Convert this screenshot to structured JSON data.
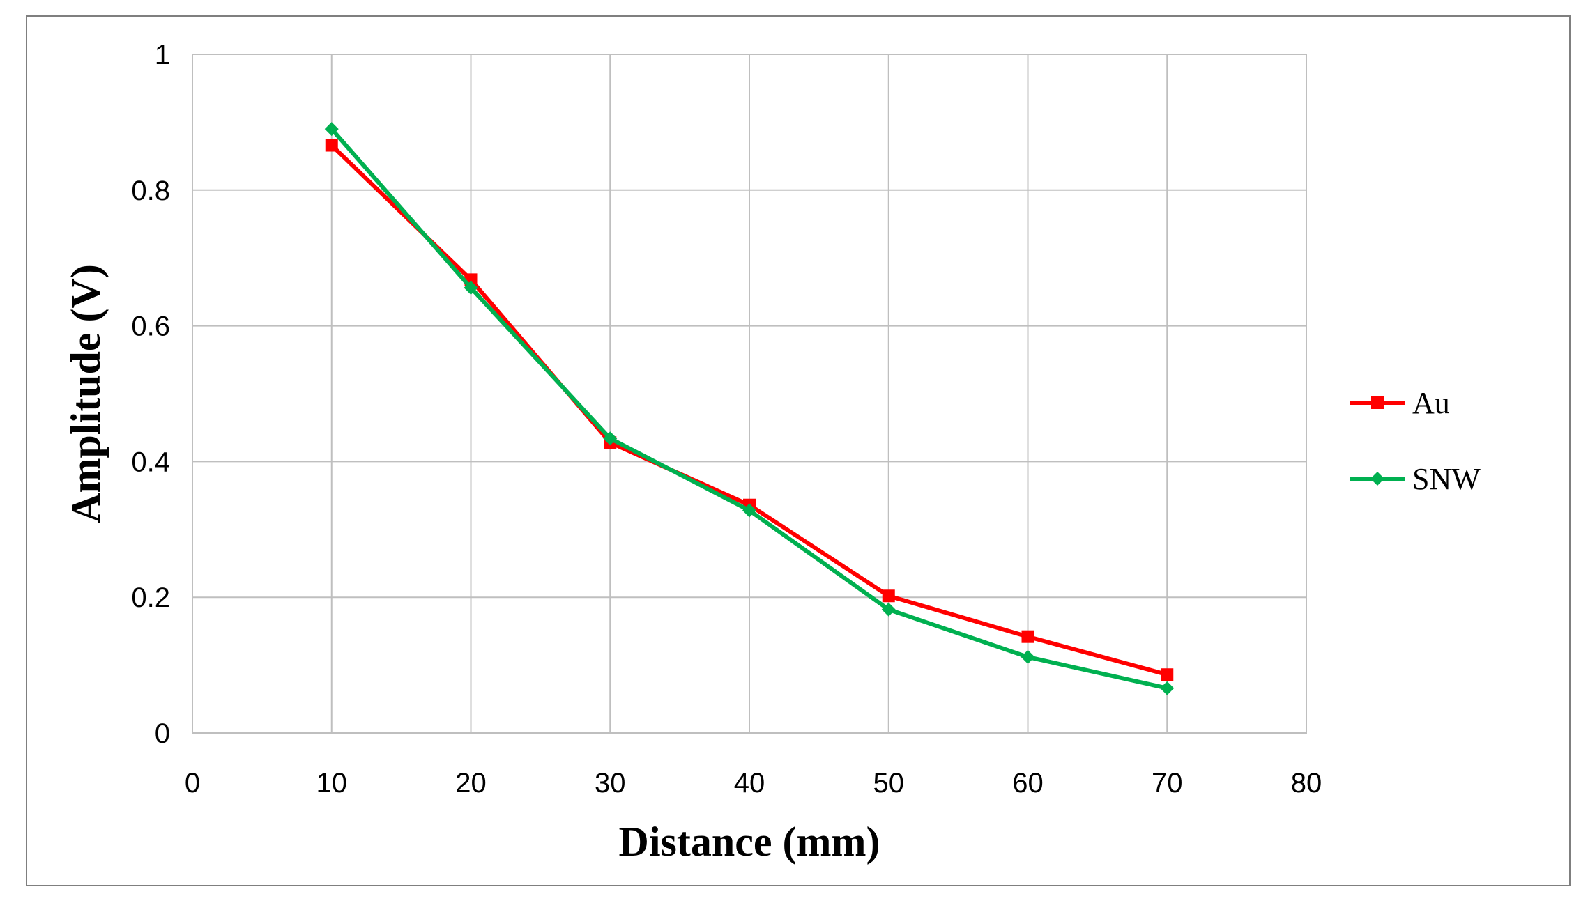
{
  "chart_data": {
    "type": "line",
    "xlabel": "Distance (mm)",
    "ylabel": "Amplitude (V)",
    "xlim": [
      0,
      80
    ],
    "ylim": [
      0,
      1
    ],
    "xticks": [
      "0",
      "10",
      "20",
      "30",
      "40",
      "50",
      "60",
      "70",
      "80"
    ],
    "yticks": [
      "0",
      "0.2",
      "0.4",
      "0.6",
      "0.8",
      "1"
    ],
    "grid": true,
    "legend_position": "right",
    "x": [
      10,
      20,
      30,
      40,
      50,
      60,
      70
    ],
    "series": [
      {
        "name": "Au",
        "color": "#ff0000",
        "marker": "square",
        "values": [
          0.866,
          0.668,
          0.428,
          0.336,
          0.202,
          0.142,
          0.086
        ]
      },
      {
        "name": "SNW",
        "color": "#00b050",
        "marker": "diamond",
        "values": [
          0.89,
          0.656,
          0.434,
          0.328,
          0.182,
          0.112,
          0.066
        ]
      }
    ]
  }
}
